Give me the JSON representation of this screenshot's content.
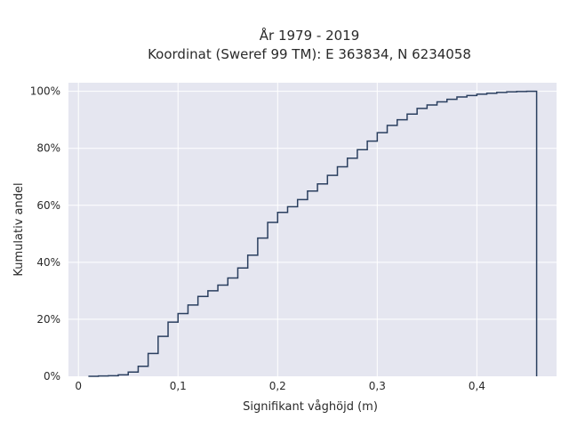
{
  "chart_data": {
    "type": "line",
    "subtype": "cumulative-step",
    "title_line1": "År 1979 - 2019",
    "title_line2": "Koordinat (Sweref 99 TM): E 363834, N 6234058",
    "xlabel": "Signifikant våghöjd (m)",
    "ylabel": "Kumulativ andel",
    "xlim": [
      -0.01,
      0.48
    ],
    "ylim": [
      0,
      1.03
    ],
    "x_ticks": [
      0,
      0.1,
      0.2,
      0.3,
      0.4
    ],
    "x_tick_labels": [
      "0",
      "0,1",
      "0,2",
      "0,3",
      "0,4"
    ],
    "y_ticks": [
      0,
      0.2,
      0.4,
      0.6,
      0.8,
      1.0
    ],
    "y_tick_labels": [
      "0%",
      "20%",
      "40%",
      "60%",
      "80%",
      "100%"
    ],
    "grid": true,
    "line_color": "#2a3f5f",
    "plot_bgcolor": "#e5e6f0",
    "x": [
      0.01,
      0.02,
      0.03,
      0.04,
      0.05,
      0.06,
      0.07,
      0.08,
      0.09,
      0.1,
      0.11,
      0.12,
      0.13,
      0.14,
      0.15,
      0.16,
      0.17,
      0.18,
      0.19,
      0.2,
      0.21,
      0.22,
      0.23,
      0.24,
      0.25,
      0.26,
      0.27,
      0.28,
      0.29,
      0.3,
      0.31,
      0.32,
      0.33,
      0.34,
      0.35,
      0.36,
      0.37,
      0.38,
      0.39,
      0.4,
      0.41,
      0.42,
      0.43,
      0.44,
      0.45,
      0.46
    ],
    "y": [
      0.0,
      0.001,
      0.002,
      0.005,
      0.015,
      0.035,
      0.08,
      0.14,
      0.19,
      0.22,
      0.25,
      0.28,
      0.3,
      0.32,
      0.345,
      0.38,
      0.425,
      0.485,
      0.54,
      0.575,
      0.595,
      0.62,
      0.65,
      0.675,
      0.705,
      0.735,
      0.765,
      0.795,
      0.825,
      0.855,
      0.88,
      0.9,
      0.92,
      0.94,
      0.952,
      0.963,
      0.972,
      0.98,
      0.985,
      0.99,
      0.993,
      0.996,
      0.998,
      0.999,
      1.0,
      1.0
    ],
    "drop_to_zero_at": 0.46
  }
}
